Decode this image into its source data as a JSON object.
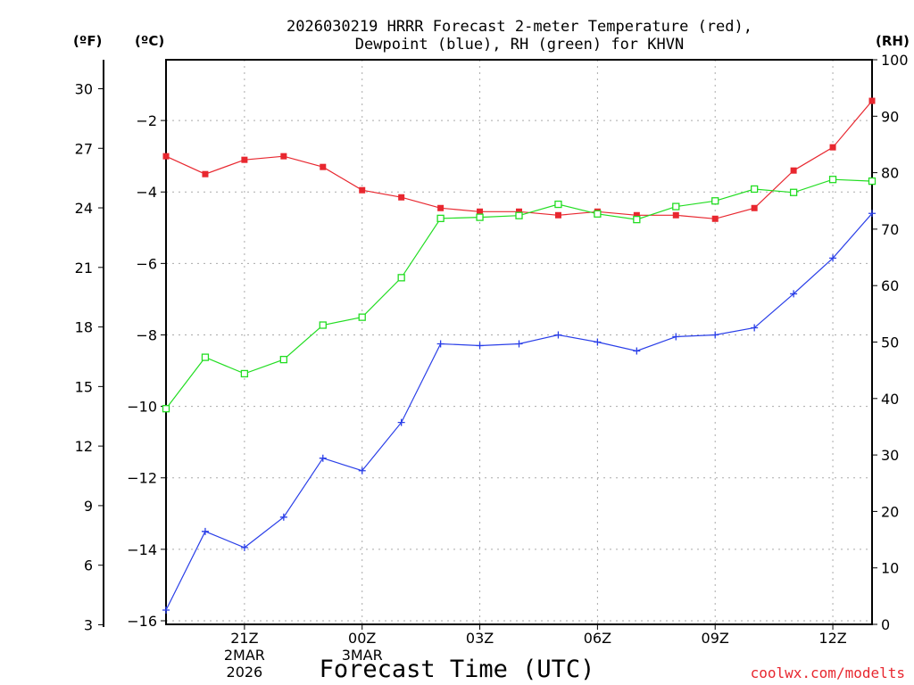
{
  "page": {
    "title_line1": "2026030219 HRRR Forecast 2-meter Temperature (red),",
    "title_line2": "Dewpoint (blue), RH (green) for KHVN",
    "unit_f": "(ºF)",
    "unit_c": "(ºC)",
    "unit_rh": "(RH)",
    "credit": "coolwx.com/modelts"
  },
  "colors": {
    "temperature": "#e8272f",
    "dewpoint": "#2a3fe8",
    "rh": "#22dd22",
    "axis": "#000000",
    "grid": "#aaaaaa"
  },
  "chart_data": {
    "type": "line",
    "title": "2026030219 HRRR Forecast 2-meter Temperature (red), Dewpoint (blue), RH (green) for KHVN",
    "xlabel": "Forecast Time (UTC)",
    "x_hours": [
      19,
      20,
      21,
      22,
      23,
      24,
      25,
      26,
      27,
      28,
      29,
      30,
      31,
      32,
      33,
      34,
      35,
      36,
      37
    ],
    "xlim": [
      19,
      37
    ],
    "x_ticks": [
      {
        "x": 21,
        "lines": [
          "21Z",
          "2MAR",
          "2026"
        ]
      },
      {
        "x": 24,
        "lines": [
          "00Z",
          "3MAR"
        ]
      },
      {
        "x": 27,
        "lines": [
          "03Z"
        ]
      },
      {
        "x": 30,
        "lines": [
          "06Z"
        ]
      },
      {
        "x": 33,
        "lines": [
          "09Z"
        ]
      },
      {
        "x": 36,
        "lines": [
          "12Z"
        ]
      }
    ],
    "y_left_c": {
      "label": "(ºC)",
      "range": [
        -16.1,
        -0.3
      ],
      "ticks": [
        "−2",
        "−4",
        "−6",
        "−8",
        "−10",
        "−12",
        "−14",
        "−16"
      ],
      "tick_values": [
        -2,
        -4,
        -6,
        -8,
        -10,
        -12,
        -14,
        -16
      ]
    },
    "y_left_f": {
      "label": "(ºF)",
      "ticks": [
        "30",
        "27",
        "24",
        "21",
        "18",
        "15",
        "12",
        "9",
        "6",
        "3"
      ],
      "tick_values": [
        30,
        27,
        24,
        21,
        18,
        15,
        12,
        9,
        6,
        3
      ]
    },
    "y_right_rh": {
      "label": "(RH)",
      "range": [
        0,
        100
      ],
      "ticks": [
        "100",
        "90",
        "80",
        "70",
        "60",
        "50",
        "40",
        "30",
        "20",
        "10",
        "0"
      ],
      "tick_values": [
        100,
        90,
        80,
        70,
        60,
        50,
        40,
        30,
        20,
        10,
        0
      ]
    },
    "grid": true,
    "series": [
      {
        "name": "Temperature",
        "axis": "c",
        "marker": "filled-square",
        "values": [
          -3.0,
          -3.5,
          -3.1,
          -3.0,
          -3.3,
          -3.95,
          -4.15,
          -4.45,
          -4.55,
          -4.55,
          -4.65,
          -4.55,
          -4.65,
          -4.65,
          -4.75,
          -4.45,
          -3.4,
          -2.75,
          -1.45
        ]
      },
      {
        "name": "Dewpoint",
        "axis": "c",
        "marker": "plus",
        "values": [
          -15.7,
          -13.5,
          -13.95,
          -13.1,
          -11.45,
          -11.8,
          -10.45,
          -8.25,
          -8.3,
          -8.25,
          -8.0,
          -8.2,
          -8.45,
          -8.05,
          -8.0,
          -7.8,
          -6.85,
          -5.85,
          -4.6
        ]
      },
      {
        "name": "RH",
        "axis": "rh",
        "marker": "open-square",
        "values": [
          38.2,
          47.3,
          44.4,
          46.9,
          53.0,
          54.4,
          61.4,
          71.9,
          72.1,
          72.4,
          74.4,
          72.7,
          71.7,
          74.0,
          75.0,
          77.1,
          76.5,
          78.8,
          78.5
        ]
      }
    ]
  }
}
